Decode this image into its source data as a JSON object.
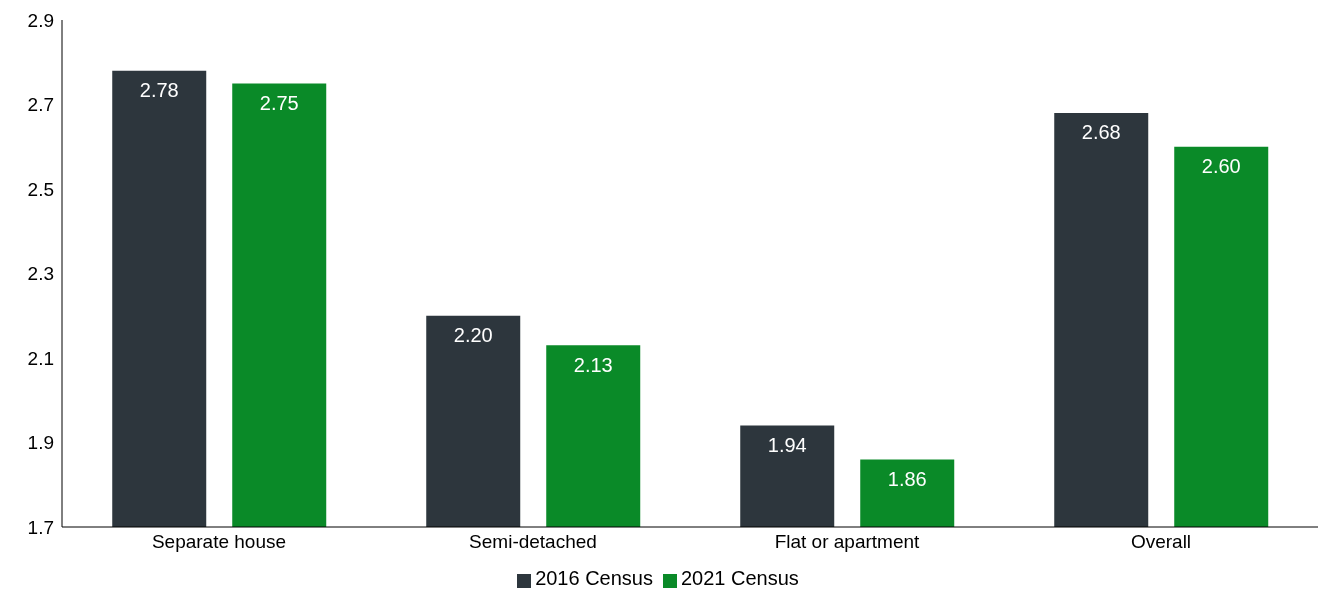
{
  "chart_data": {
    "type": "bar",
    "categories": [
      "Separate house",
      "Semi-detached",
      "Flat or apartment",
      "Overall"
    ],
    "series": [
      {
        "name": "2016 Census",
        "color": "#2d363d",
        "values": [
          2.78,
          2.2,
          1.94,
          2.68
        ],
        "value_labels": [
          "2.78",
          "2.20",
          "1.94",
          "2.68"
        ]
      },
      {
        "name": "2021 Census",
        "color": "#0a8a28",
        "values": [
          2.75,
          2.13,
          1.86,
          2.6
        ],
        "value_labels": [
          "2.75",
          "2.13",
          "1.86",
          "2.60"
        ]
      }
    ],
    "ylim": [
      1.7,
      2.9
    ],
    "yticks": [
      1.7,
      1.9,
      2.1,
      2.3,
      2.5,
      2.7,
      2.9
    ],
    "grid": false,
    "legend": "bottom"
  }
}
